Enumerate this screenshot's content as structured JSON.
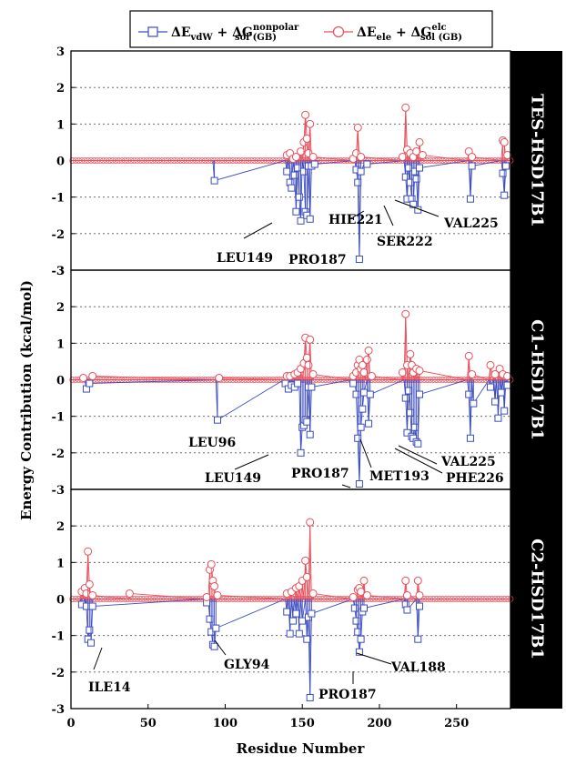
{
  "chart_data": [
    {
      "type": "scatter",
      "panel_label": "TES-HSD17B1",
      "xlabel": "Residue Number",
      "ylabel": "Energy Contribution (kcal/mol)",
      "xlim": [
        0,
        285
      ],
      "ylim": [
        -3,
        3
      ],
      "grid": "dotted horizontal",
      "series": [
        {
          "legend_index": 0,
          "color": "#3b4cc0",
          "marker": "square",
          "points": [
            [
              93,
              -0.55
            ],
            [
              140,
              -0.3
            ],
            [
              142,
              -0.6
            ],
            [
              143,
              -0.75
            ],
            [
              145,
              -0.4
            ],
            [
              146,
              -1.4
            ],
            [
              147,
              -0.2
            ],
            [
              148,
              -1.0
            ],
            [
              149,
              -1.65
            ],
            [
              151,
              -0.3
            ],
            [
              152,
              -1.4
            ],
            [
              153,
              -1.5
            ],
            [
              154,
              -0.15
            ],
            [
              155,
              -1.6
            ],
            [
              156,
              -0.15
            ],
            [
              158,
              -0.1
            ],
            [
              185,
              -0.25
            ],
            [
              186,
              -0.6
            ],
            [
              187,
              -2.7
            ],
            [
              188,
              -0.3
            ],
            [
              192,
              -0.1
            ],
            [
              217,
              -0.45
            ],
            [
              218,
              -1.05
            ],
            [
              219,
              -0.2
            ],
            [
              220,
              -0.6
            ],
            [
              221,
              -1.05
            ],
            [
              222,
              -1.2
            ],
            [
              223,
              -0.3
            ],
            [
              224,
              -0.5
            ],
            [
              225,
              -1.35
            ],
            [
              226,
              -0.2
            ],
            [
              259,
              -1.05
            ],
            [
              260,
              -0.15
            ],
            [
              280,
              -0.35
            ],
            [
              281,
              -0.95
            ],
            [
              282,
              -0.15
            ]
          ]
        },
        {
          "legend_index": 1,
          "color": "#e8505b",
          "marker": "circle",
          "points": [
            [
              140,
              0.15
            ],
            [
              142,
              0.2
            ],
            [
              144,
              0.05
            ],
            [
              146,
              0.1
            ],
            [
              149,
              0.25
            ],
            [
              151,
              0.5
            ],
            [
              152,
              1.25
            ],
            [
              153,
              0.6
            ],
            [
              154,
              0.2
            ],
            [
              155,
              1.0
            ],
            [
              157,
              0.1
            ],
            [
              183,
              0.05
            ],
            [
              185,
              0.2
            ],
            [
              186,
              0.9
            ],
            [
              188,
              0.1
            ],
            [
              215,
              0.1
            ],
            [
              217,
              1.45
            ],
            [
              218,
              0.3
            ],
            [
              220,
              0.2
            ],
            [
              222,
              0.1
            ],
            [
              224,
              0.25
            ],
            [
              226,
              0.5
            ],
            [
              228,
              0.15
            ],
            [
              258,
              0.25
            ],
            [
              260,
              0.1
            ],
            [
              280,
              0.55
            ],
            [
              281,
              0.5
            ],
            [
              283,
              0.15
            ]
          ]
        }
      ],
      "annotations": [
        "LEU149",
        "PRO187",
        "HIE221",
        "SER222",
        "VAL225"
      ]
    },
    {
      "type": "scatter",
      "panel_label": "C1-HSD17B1",
      "xlim": [
        0,
        285
      ],
      "ylim": [
        -3,
        3
      ],
      "series": [
        {
          "legend_index": 0,
          "color": "#3b4cc0",
          "marker": "square",
          "points": [
            [
              10,
              -0.25
            ],
            [
              12,
              -0.1
            ],
            [
              95,
              -1.1
            ],
            [
              139,
              -0.1
            ],
            [
              141,
              -0.25
            ],
            [
              143,
              -0.15
            ],
            [
              145,
              -0.2
            ],
            [
              147,
              -0.1
            ],
            [
              149,
              -2.0
            ],
            [
              150,
              -1.3
            ],
            [
              151,
              -1.25
            ],
            [
              152,
              -1.1
            ],
            [
              153,
              -1.15
            ],
            [
              154,
              -0.2
            ],
            [
              155,
              -1.5
            ],
            [
              156,
              -0.2
            ],
            [
              183,
              -0.1
            ],
            [
              185,
              -0.4
            ],
            [
              186,
              -1.6
            ],
            [
              187,
              -2.85
            ],
            [
              188,
              -1.3
            ],
            [
              189,
              -0.8
            ],
            [
              190,
              -0.35
            ],
            [
              193,
              -1.2
            ],
            [
              194,
              -0.4
            ],
            [
              217,
              -0.5
            ],
            [
              218,
              -1.45
            ],
            [
              219,
              -0.3
            ],
            [
              220,
              -0.9
            ],
            [
              221,
              -1.55
            ],
            [
              222,
              -1.6
            ],
            [
              223,
              -1.3
            ],
            [
              224,
              -1.7
            ],
            [
              225,
              -1.75
            ],
            [
              226,
              -0.4
            ],
            [
              258,
              -0.4
            ],
            [
              259,
              -1.6
            ],
            [
              261,
              -0.65
            ],
            [
              272,
              -0.2
            ],
            [
              275,
              -0.6
            ],
            [
              277,
              -1.05
            ],
            [
              279,
              -0.35
            ],
            [
              281,
              -0.85
            ],
            [
              283,
              -0.15
            ]
          ]
        },
        {
          "legend_index": 1,
          "color": "#e8505b",
          "marker": "circle",
          "points": [
            [
              8,
              0.05
            ],
            [
              14,
              0.1
            ],
            [
              96,
              0.05
            ],
            [
              140,
              0.1
            ],
            [
              142,
              0.1
            ],
            [
              145,
              0.15
            ],
            [
              147,
              0.2
            ],
            [
              149,
              0.3
            ],
            [
              151,
              0.45
            ],
            [
              152,
              1.15
            ],
            [
              153,
              0.6
            ],
            [
              154,
              0.4
            ],
            [
              155,
              1.1
            ],
            [
              157,
              0.15
            ],
            [
              183,
              0.1
            ],
            [
              185,
              0.2
            ],
            [
              186,
              0.4
            ],
            [
              187,
              0.55
            ],
            [
              188,
              0.3
            ],
            [
              189,
              0.4
            ],
            [
              190,
              0.2
            ],
            [
              192,
              0.55
            ],
            [
              193,
              0.8
            ],
            [
              195,
              0.1
            ],
            [
              215,
              0.2
            ],
            [
              217,
              1.8
            ],
            [
              218,
              0.4
            ],
            [
              220,
              0.7
            ],
            [
              221,
              0.4
            ],
            [
              222,
              0.2
            ],
            [
              224,
              0.3
            ],
            [
              226,
              0.25
            ],
            [
              258,
              0.65
            ],
            [
              260,
              0.15
            ],
            [
              272,
              0.4
            ],
            [
              275,
              0.15
            ],
            [
              278,
              0.3
            ],
            [
              280,
              0.15
            ],
            [
              283,
              0.1
            ]
          ]
        }
      ],
      "annotations": [
        "LEU96",
        "LEU149",
        "PRO187",
        "MET193",
        "VAL225",
        "PHE226"
      ]
    },
    {
      "type": "scatter",
      "panel_label": "C2-HSD17B1",
      "xlim": [
        0,
        285
      ],
      "ylim": [
        -3,
        3
      ],
      "series": [
        {
          "legend_index": 0,
          "color": "#3b4cc0",
          "marker": "square",
          "points": [
            [
              7,
              -0.15
            ],
            [
              10,
              -0.2
            ],
            [
              11,
              -1.1
            ],
            [
              12,
              -0.85
            ],
            [
              13,
              -1.2
            ],
            [
              14,
              -0.2
            ],
            [
              88,
              -0.1
            ],
            [
              90,
              -0.55
            ],
            [
              91,
              -0.9
            ],
            [
              92,
              -1.25
            ],
            [
              93,
              -1.3
            ],
            [
              94,
              -0.8
            ],
            [
              140,
              -0.35
            ],
            [
              142,
              -0.95
            ],
            [
              144,
              -0.6
            ],
            [
              146,
              -0.4
            ],
            [
              148,
              -0.95
            ],
            [
              150,
              -0.6
            ],
            [
              153,
              -1.1
            ],
            [
              154,
              -0.5
            ],
            [
              155,
              -2.7
            ],
            [
              156,
              -0.4
            ],
            [
              184,
              -0.25
            ],
            [
              185,
              -0.6
            ],
            [
              186,
              -0.9
            ],
            [
              187,
              -1.45
            ],
            [
              188,
              -1.1
            ],
            [
              189,
              -0.35
            ],
            [
              190,
              -0.25
            ],
            [
              217,
              -0.15
            ],
            [
              218,
              -0.3
            ],
            [
              225,
              -1.1
            ],
            [
              226,
              -0.2
            ]
          ]
        },
        {
          "legend_index": 1,
          "color": "#e8505b",
          "marker": "circle",
          "points": [
            [
              7,
              0.2
            ],
            [
              9,
              0.3
            ],
            [
              10,
              0.15
            ],
            [
              11,
              1.3
            ],
            [
              12,
              0.4
            ],
            [
              14,
              0.1
            ],
            [
              38,
              0.15
            ],
            [
              88,
              0.05
            ],
            [
              90,
              0.8
            ],
            [
              91,
              0.95
            ],
            [
              92,
              0.5
            ],
            [
              93,
              0.35
            ],
            [
              95,
              0.1
            ],
            [
              140,
              0.15
            ],
            [
              143,
              0.2
            ],
            [
              146,
              0.3
            ],
            [
              148,
              0.35
            ],
            [
              150,
              0.5
            ],
            [
              152,
              1.05
            ],
            [
              153,
              0.6
            ],
            [
              155,
              2.1
            ],
            [
              157,
              0.15
            ],
            [
              183,
              0.05
            ],
            [
              186,
              0.25
            ],
            [
              187,
              0.3
            ],
            [
              188,
              0.2
            ],
            [
              190,
              0.5
            ],
            [
              192,
              0.1
            ],
            [
              217,
              0.5
            ],
            [
              218,
              0.1
            ],
            [
              225,
              0.5
            ],
            [
              226,
              0.1
            ]
          ]
        }
      ],
      "annotations": [
        "ILE14",
        "GLY94",
        "PRO187",
        "VAL188"
      ]
    }
  ],
  "legend": {
    "entry0": {
      "prefix": "ΔE",
      "sub1": "vdW",
      "mid": " + ΔG",
      "sup": "nonpolar",
      "sub2": "sol (GB)"
    },
    "entry1": {
      "prefix": "ΔE",
      "sub1": "ele",
      "mid": " + ΔG",
      "sup": "elc",
      "sub2": "sol (GB)"
    }
  },
  "y_ticks": [
    "-3",
    "-2",
    "-1",
    "0",
    "1",
    "2",
    "3"
  ],
  "y_ticks_bottom": [
    "-3",
    "-2",
    "-1",
    "0",
    "1",
    "2"
  ],
  "x_ticks": [
    "0",
    "50",
    "100",
    "150",
    "200",
    "250"
  ],
  "colors": {
    "series0": "#3b4cc0",
    "series1": "#e8505b",
    "panel_label_bg": "#000000",
    "panel_label_text": "#ffffff"
  }
}
